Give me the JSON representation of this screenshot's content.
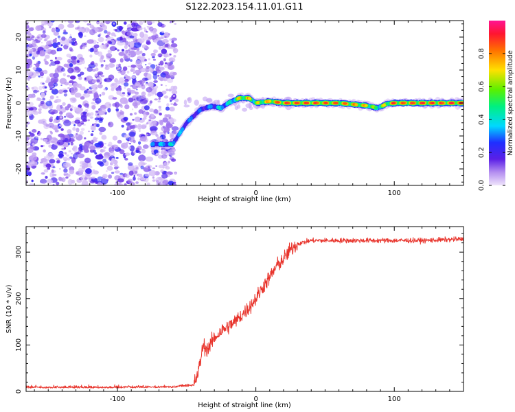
{
  "title": "S122.2023.154.11.01.G11",
  "colors": {
    "snr_line": "#e8342c",
    "scatter_base": "#7b2fe0",
    "colorbar_stops": [
      "#e6d8f7",
      "#7a2fe8",
      "#1a1aff",
      "#00e5ff",
      "#00f06a",
      "#7cf000",
      "#ffd400",
      "#ff6a00",
      "#ff1030",
      "#ff1493"
    ]
  },
  "chart_data": [
    {
      "type": "heatmap",
      "title": "S122.2023.154.11.01.G11",
      "xlabel": "Height of straight line (km)",
      "ylabel": "Frequency (Hz)",
      "xlim": [
        -166,
        150
      ],
      "ylim": [
        -25,
        25
      ],
      "xticks": [
        -100,
        0,
        100
      ],
      "yticks": [
        -20,
        -10,
        0,
        10,
        20
      ],
      "grid": false,
      "noise_region_x": [
        -166,
        -58
      ],
      "ridge": {
        "x": [
          -75,
          -60,
          -57,
          -50,
          -40,
          -32,
          -25,
          -20,
          -12,
          -5,
          0,
          10,
          20,
          40,
          60,
          80,
          88,
          95,
          100,
          110,
          120,
          130,
          150
        ],
        "y": [
          -12.5,
          -12.5,
          -10.5,
          -6,
          -2,
          -1,
          -1.5,
          0,
          1.5,
          1.5,
          0,
          0.5,
          0,
          0,
          0,
          -0.8,
          -1.5,
          -0.2,
          0,
          0,
          0,
          0,
          0
        ],
        "amplitude": [
          0.35,
          0.45,
          0.4,
          0.35,
          0.3,
          0.35,
          0.45,
          0.45,
          0.75,
          0.8,
          0.7,
          0.85,
          0.95,
          0.95,
          0.9,
          0.8,
          0.6,
          0.8,
          0.95,
          0.95,
          0.95,
          0.95,
          0.95
        ]
      },
      "colorbar": {
        "label": "Normalized spectral amplitude",
        "range": [
          0.0,
          1.0
        ],
        "ticks": [
          0.0,
          0.2,
          0.4,
          0.6,
          0.8
        ],
        "tick_labels": [
          "0.0",
          "0.2",
          "0.4",
          "0.6",
          "0.8"
        ]
      }
    },
    {
      "type": "line",
      "xlabel": "Height of straight line (km)",
      "ylabel": "SNR (10 * v/v)",
      "xlim": [
        -166,
        150
      ],
      "ylim": [
        0,
        355
      ],
      "xticks": [
        -100,
        0,
        100
      ],
      "yticks": [
        0,
        100,
        200,
        300
      ],
      "grid": false,
      "series": [
        {
          "x": [
            -166,
            -100,
            -60,
            -45,
            -42,
            -38,
            -35,
            -30,
            -25,
            -20,
            -15,
            -10,
            -5,
            0,
            5,
            10,
            15,
            20,
            25,
            30,
            40,
            60,
            80,
            100,
            120,
            150
          ],
          "y": [
            10,
            10,
            11,
            15,
            35,
            100,
            90,
            115,
            130,
            140,
            150,
            165,
            180,
            200,
            225,
            245,
            270,
            285,
            305,
            318,
            325,
            325,
            325,
            325,
            325,
            328
          ]
        }
      ]
    }
  ]
}
